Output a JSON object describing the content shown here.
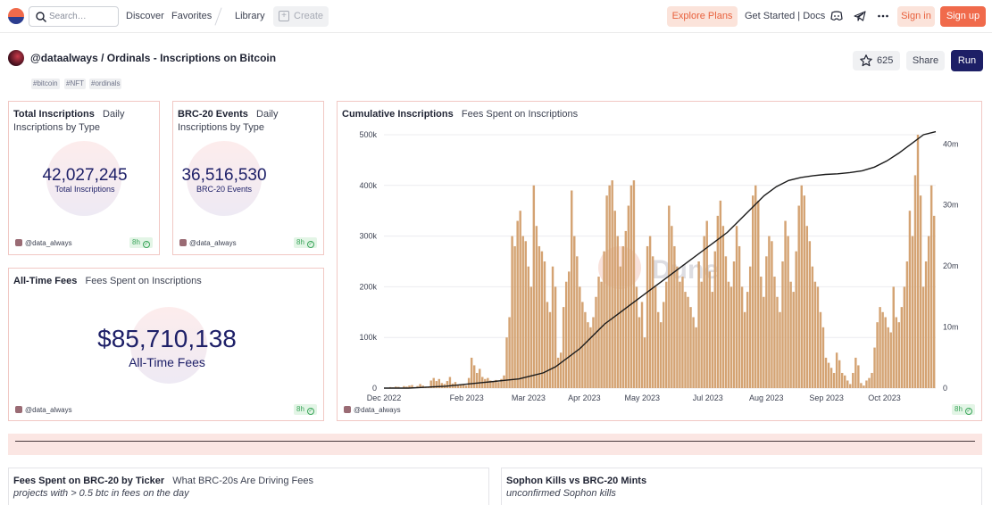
{
  "nav": {
    "search_placeholder": "Search…",
    "discover": "Discover",
    "favorites": "Favorites",
    "library": "Library",
    "create": "Create",
    "explore_plans": "Explore Plans",
    "get_started": "Get Started | Docs",
    "sign_in": "Sign in",
    "sign_up": "Sign up"
  },
  "header": {
    "title": "@dataalways / Ordinals - Inscriptions on Bitcoin",
    "star_count": "625",
    "share": "Share",
    "run": "Run",
    "tags": [
      "#bitcoin",
      "#NFT",
      "#ordinals"
    ]
  },
  "panels": {
    "total": {
      "title": "Total Inscriptions",
      "subtitle": "Daily Inscriptions by Type",
      "value": "42,027,245",
      "label": "Total Inscriptions",
      "author": "@data_always",
      "age": "8h"
    },
    "brc20": {
      "title": "BRC-20 Events",
      "subtitle": "Daily Inscriptions by Type",
      "value": "36,516,530",
      "label": "BRC-20 Events",
      "author": "@data_always",
      "age": "8h"
    },
    "fees": {
      "title": "All-Time Fees",
      "subtitle": "Fees Spent on Inscriptions",
      "value": "$85,710,138",
      "label": "All-Time Fees",
      "author": "@data_always",
      "age": "8h"
    },
    "cumulative": {
      "title": "Cumulative Inscriptions",
      "subtitle": "Fees Spent on Inscriptions",
      "author": "@data_always",
      "age": "8h"
    },
    "brc20_ticker": {
      "title": "Fees Spent on BRC-20 by Ticker",
      "subtitle": "What BRC-20s Are Driving Fees",
      "note": "projects with > 0.5 btc in fees on the day"
    },
    "sophon": {
      "title": "Sophon Kills vs BRC-20 Mints",
      "note": "unconfirmed Sophon kills"
    }
  },
  "chart_data": {
    "type": "bar",
    "title": "Cumulative Inscriptions",
    "watermark": "Dune",
    "x_tick_labels": [
      "Dec 2022",
      "Feb 2023",
      "Mar 2023",
      "Apr 2023",
      "May 2023",
      "Jul 2023",
      "Aug 2023",
      "Sep 2023",
      "Oct 2023"
    ],
    "x_range": [
      "2022-12-14",
      "2023-10-30"
    ],
    "y_left": {
      "ticks": [
        "0",
        "100k",
        "200k",
        "300k",
        "400k",
        "500k"
      ],
      "range": [
        0,
        500000
      ]
    },
    "y_right": {
      "ticks": [
        "0",
        "10m",
        "20m",
        "30m",
        "40m"
      ],
      "range": [
        0,
        40000000
      ]
    },
    "grid": true,
    "bar_color": "#d4a373",
    "line_color": "#1a1a1a",
    "series": [
      {
        "type": "bar",
        "axis": "left",
        "values": [
          0,
          500,
          2000,
          1500,
          3000,
          2500,
          1000,
          4000,
          3000,
          5000,
          6000,
          2000,
          4000,
          8000,
          5000,
          3000,
          2500,
          15000,
          20000,
          14000,
          18000,
          10000,
          8000,
          14000,
          22000,
          9000,
          12000,
          6000,
          7000,
          8000,
          5000,
          20000,
          60000,
          45000,
          30000,
          38000,
          22000,
          18000,
          20000,
          15000,
          14000,
          16000,
          12000,
          18000,
          25000,
          100000,
          140000,
          300000,
          280000,
          330000,
          350000,
          300000,
          290000,
          240000,
          200000,
          400000,
          320000,
          280000,
          270000,
          250000,
          170000,
          150000,
          240000,
          200000,
          60000,
          70000,
          160000,
          210000,
          230000,
          390000,
          300000,
          260000,
          200000,
          170000,
          150000,
          130000,
          120000,
          140000,
          180000,
          220000,
          210000,
          270000,
          380000,
          400000,
          410000,
          350000,
          300000,
          240000,
          280000,
          310000,
          360000,
          400000,
          410000,
          200000,
          140000,
          170000,
          100000,
          280000,
          300000,
          260000,
          200000,
          150000,
          130000,
          170000,
          210000,
          360000,
          320000,
          280000,
          240000,
          210000,
          220000,
          190000,
          180000,
          160000,
          140000,
          120000,
          250000,
          210000,
          300000,
          330000,
          230000,
          190000,
          270000,
          340000,
          370000,
          320000,
          260000,
          210000,
          200000,
          250000,
          320000,
          280000,
          200000,
          150000,
          190000,
          240000,
          380000,
          400000,
          370000,
          220000,
          180000,
          260000,
          300000,
          290000,
          220000,
          180000,
          150000,
          250000,
          330000,
          300000,
          210000,
          190000,
          270000,
          360000,
          400000,
          380000,
          320000,
          290000,
          240000,
          210000,
          200000,
          150000,
          120000,
          60000,
          50000,
          40000,
          30000,
          70000,
          55000,
          30000,
          25000,
          15000,
          8000,
          30000,
          60000,
          45000,
          10000,
          5000,
          15000,
          20000,
          30000,
          80000,
          130000,
          160000,
          150000,
          140000,
          120000,
          110000,
          200000,
          140000,
          130000,
          160000,
          200000,
          250000,
          350000,
          300000,
          420000,
          500000,
          380000,
          200000,
          250000,
          300000,
          400000,
          340000
        ]
      },
      {
        "type": "line",
        "axis": "right",
        "name": "cumulative",
        "values": [
          0,
          0,
          0,
          100000,
          200000,
          300000,
          500000,
          700000,
          900000,
          1100000,
          1300000,
          1500000,
          2000000,
          2500000,
          3500000,
          5000000,
          6500000,
          8500000,
          10500000,
          12000000,
          13500000,
          15000000,
          16500000,
          18000000,
          19500000,
          21000000,
          22500000,
          24000000,
          25500000,
          27500000,
          29500000,
          31500000,
          33000000,
          34000000,
          34500000,
          34800000,
          35000000,
          35100000,
          35300000,
          35600000,
          36200000,
          37200000,
          38500000,
          40000000,
          41500000,
          42000000
        ]
      }
    ]
  }
}
